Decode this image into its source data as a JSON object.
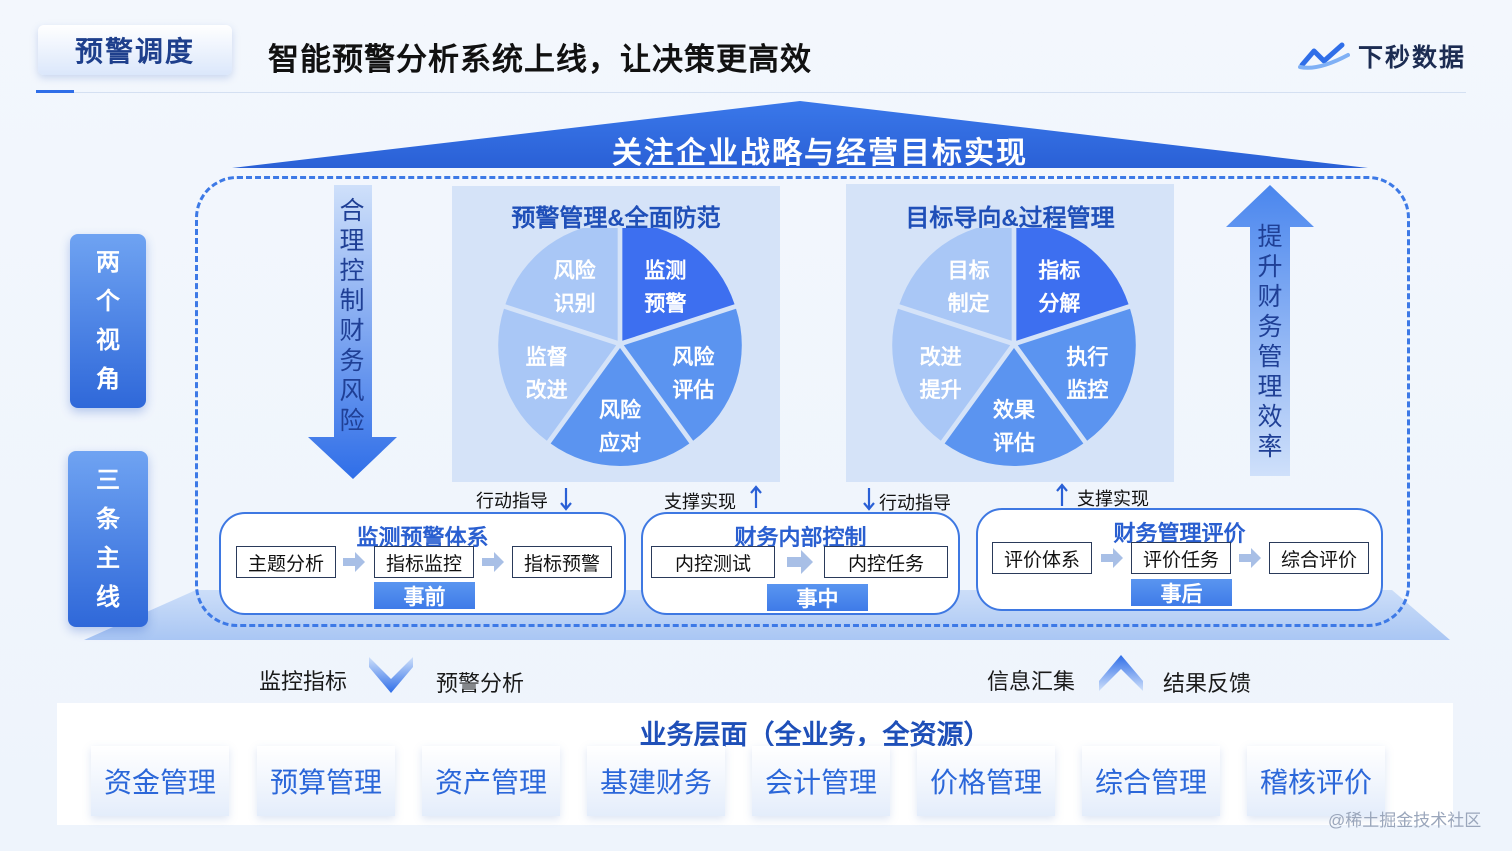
{
  "header": {
    "tag": "预警调度",
    "title": "智能预警分析系统上线，让决策更高效",
    "brand": "下秒数据"
  },
  "roof": "关注企业战略与经营目标实现",
  "side_labels": {
    "two_views": [
      "两",
      "个",
      "视",
      "角"
    ],
    "three_lines": [
      "三",
      "条",
      "主",
      "线"
    ]
  },
  "left_arrow_text": [
    "合",
    "理",
    "控",
    "制",
    "财",
    "务",
    "风",
    "险"
  ],
  "right_arrow_text": [
    "提",
    "升",
    "财",
    "务",
    "管",
    "理",
    "效",
    "率"
  ],
  "panel_left": {
    "title": "预警管理&全面防范",
    "slices": [
      "监测\n预警",
      "风险\n评估",
      "风险\n应对",
      "监督\n改进",
      "风险\n识别"
    ]
  },
  "panel_right": {
    "title": "目标导向&过程管理",
    "slices": [
      "指标\n分解",
      "执行\n监控",
      "效果\n评估",
      "改进\n提升",
      "目标\n制定"
    ]
  },
  "connectors": {
    "c1": "行动指导",
    "c2": "支撑实现",
    "c3": "行动指导",
    "c4": "支撑实现"
  },
  "boxes": {
    "monitor": {
      "title": "监测预警体系",
      "steps": [
        "主题分析",
        "指标监控",
        "指标预警"
      ],
      "stage": "事前"
    },
    "control": {
      "title": "财务内部控制",
      "steps": [
        "内控测试",
        "内控任务"
      ],
      "stage": "事中"
    },
    "evaluate": {
      "title": "财务管理评价",
      "steps": [
        "评价体系",
        "评价任务",
        "综合评价"
      ],
      "stage": "事后"
    }
  },
  "flow": {
    "left_a": "监控指标",
    "left_b": "预警分析",
    "right_a": "信息汇集",
    "right_b": "结果反馈"
  },
  "business": {
    "title": "业务层面（全业务，全资源）",
    "items": [
      "资金管理",
      "预算管理",
      "资产管理",
      "基建财务",
      "会计管理",
      "价格管理",
      "综合管理",
      "稽核评价"
    ]
  },
  "watermark": "@稀土掘金技术社区",
  "colors": {
    "primary": "#2f6ee8",
    "deep": "#1f4fb8",
    "slice_dark": "#3d6ff0",
    "slice_mid": "#5b94f0",
    "slice_light": "#a9c7f6"
  }
}
